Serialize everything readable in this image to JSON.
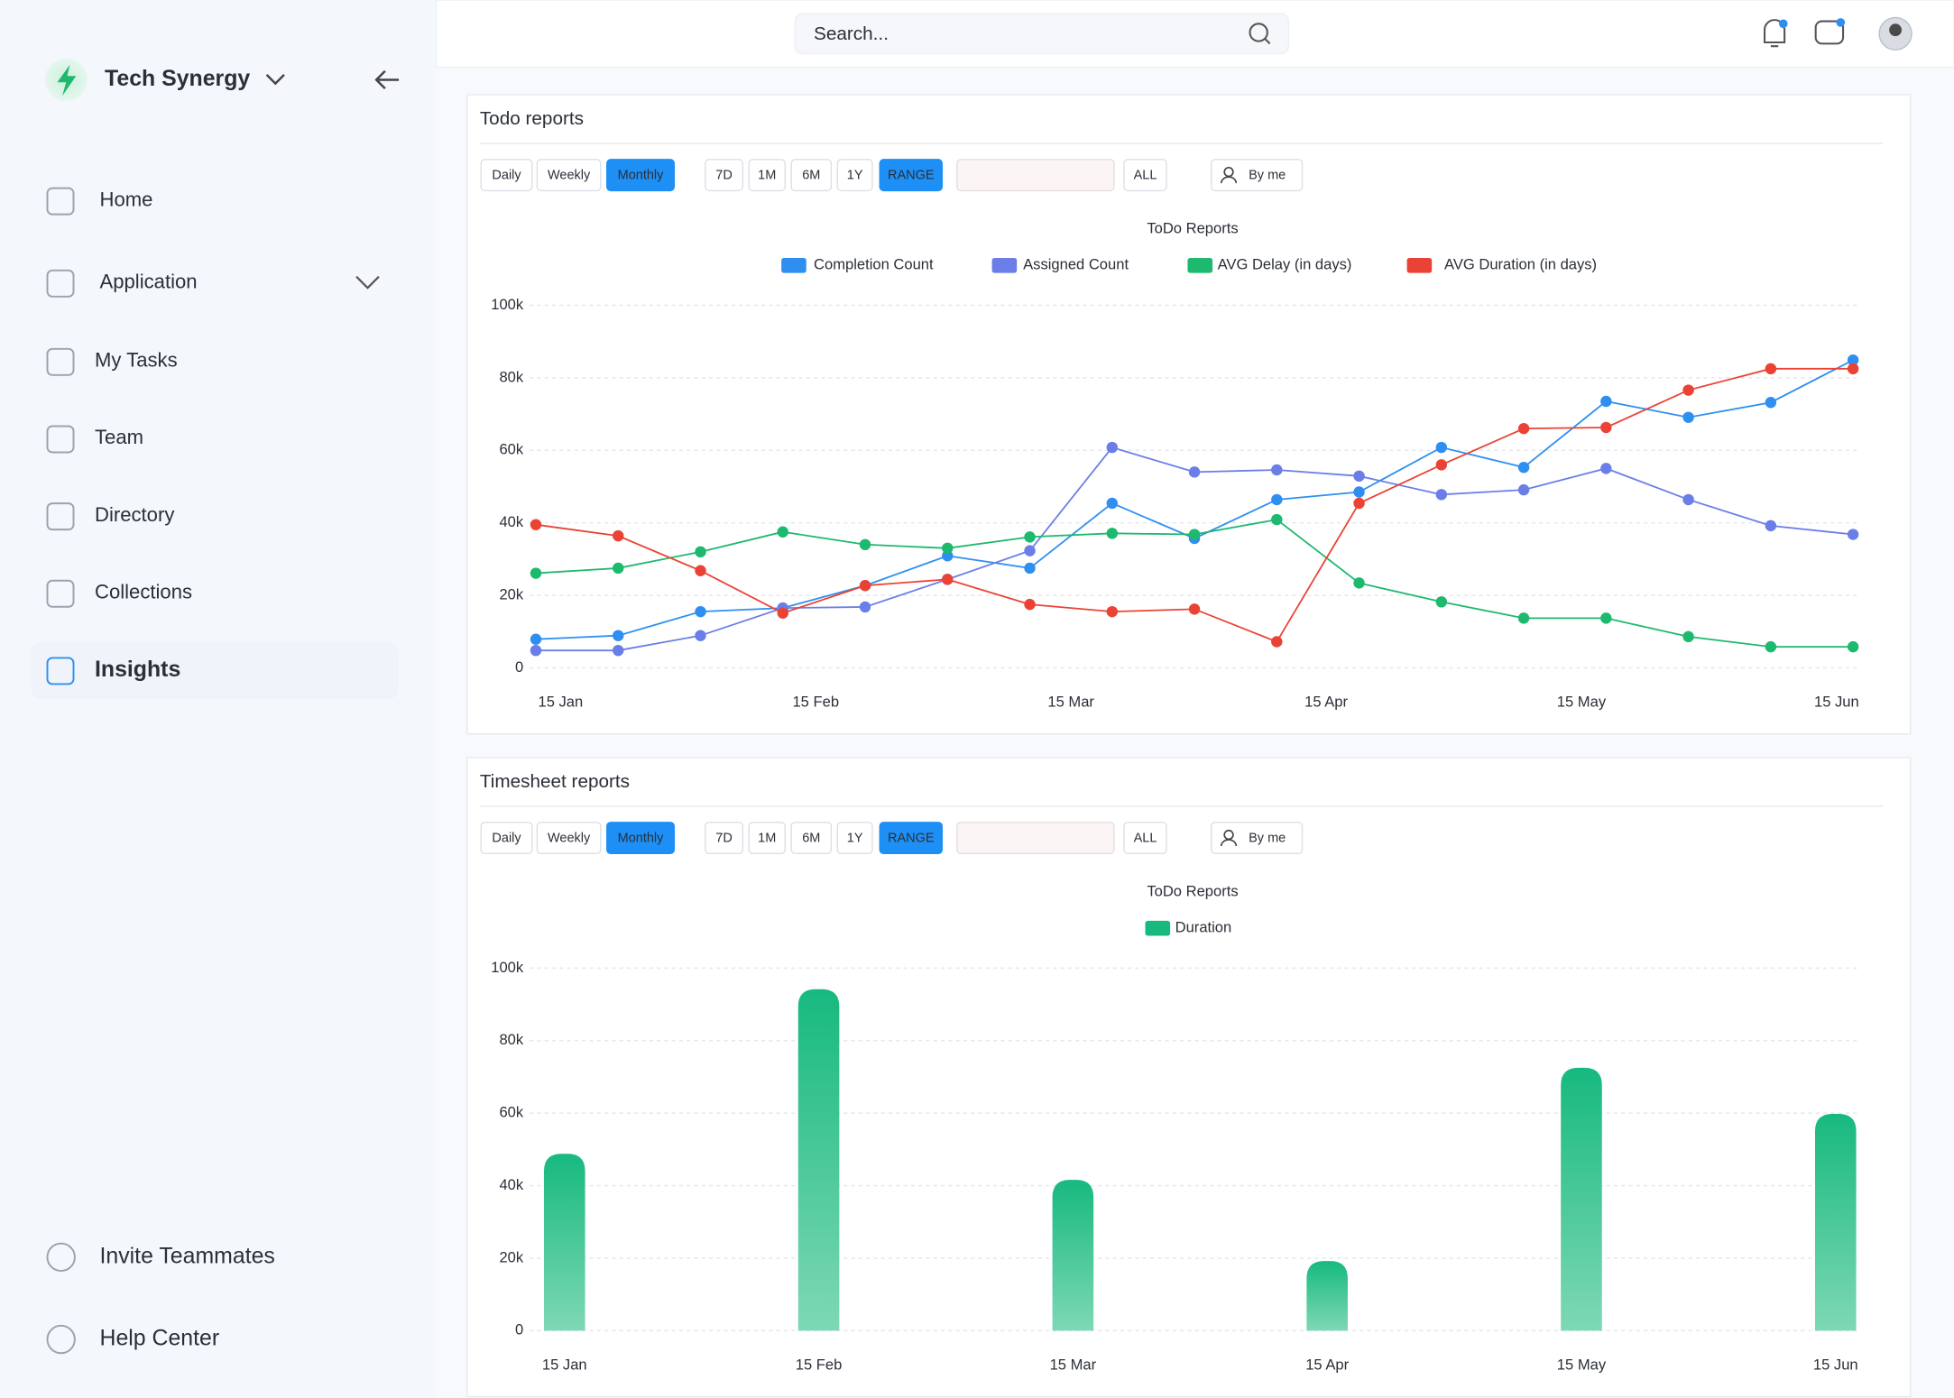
{
  "sidebar": {
    "brand": "Tech Synergy",
    "nav": [
      "Home",
      "Application",
      "My Tasks",
      "Team",
      "Directory",
      "Collections",
      "Insights"
    ],
    "footer": [
      "Invite Teammates",
      "Help Center"
    ]
  },
  "header": {
    "search_placeholder": "Search..."
  },
  "panels": [
    {
      "title": "Todo reports",
      "buttons": [
        "Daily",
        "Weekly",
        "Monthly",
        "7D",
        "1M",
        "6M",
        "1Y",
        "RANGE",
        "ALL"
      ],
      "filter": "By me"
    },
    {
      "title": "Timesheet reports",
      "buttons": [
        "Daily",
        "Weekly",
        "Monthly",
        "7D",
        "1M",
        "6M",
        "1Y",
        "RANGE",
        "ALL"
      ],
      "filter": "By me"
    }
  ],
  "chart_data": [
    {
      "type": "line",
      "title": "ToDo Reports",
      "x": [
        0,
        1,
        2,
        3,
        4,
        5,
        6,
        7,
        8,
        9,
        10,
        11,
        12,
        13,
        14,
        15,
        16
      ],
      "xlim": [
        0,
        16
      ],
      "xticks": [
        {
          "value": 0.3,
          "label": "15 Jan"
        },
        {
          "value": 3.4,
          "label": "15 Feb"
        },
        {
          "value": 6.5,
          "label": "15 Mar"
        },
        {
          "value": 9.6,
          "label": "15 Apr"
        },
        {
          "value": 12.7,
          "label": "15 May"
        },
        {
          "value": 15.8,
          "label": "15 Jun"
        }
      ],
      "ylim": [
        0,
        100000
      ],
      "yticks": [
        0,
        {
          "value": 20000,
          "label": "20k"
        },
        {
          "value": 40000,
          "label": "40k"
        },
        {
          "value": 60000,
          "label": "60k"
        },
        {
          "value": 80000,
          "label": "80k"
        },
        {
          "value": 100000,
          "label": "100k"
        }
      ],
      "grid": true,
      "series": [
        {
          "name": "Completion Count",
          "color": "#2f8ff0",
          "values": [
            7900,
            8900,
            15500,
            16500,
            22700,
            30900,
            27500,
            45400,
            35700,
            46400,
            48500,
            60800,
            55300,
            73500,
            69100,
            73200,
            84900
          ]
        },
        {
          "name": "Assigned Count",
          "color": "#6b7ee8",
          "values": [
            4800,
            4800,
            8900,
            16500,
            16800,
            24400,
            32300,
            60800,
            54000,
            54600,
            52900,
            47800,
            49100,
            55000,
            46400,
            39200,
            36800
          ]
        },
        {
          "name": "AVG Delay (in days)",
          "color": "#1db96f",
          "values": [
            26100,
            27500,
            32000,
            37500,
            34000,
            33000,
            36100,
            37100,
            36800,
            40900,
            23400,
            18200,
            13700,
            13700,
            8600,
            5800,
            5800
          ]
        },
        {
          "name": "AVG Duration (in days)",
          "color": "#ea4335",
          "values": [
            39500,
            36400,
            26800,
            15100,
            22700,
            24400,
            17500,
            15500,
            16200,
            7200,
            45400,
            56000,
            66000,
            66300,
            76600,
            82500,
            82500
          ]
        }
      ]
    },
    {
      "type": "bar",
      "title": "ToDo Reports",
      "categories": [
        "15 Jan",
        "15 Feb",
        "15 Mar",
        "15 Apr",
        "15 May",
        "15 Jun"
      ],
      "ylim": [
        0,
        100000
      ],
      "yticks": [
        0,
        {
          "value": 20000,
          "label": "20k"
        },
        {
          "value": 40000,
          "label": "40k"
        },
        {
          "value": 60000,
          "label": "60k"
        },
        {
          "value": 80000,
          "label": "80k"
        },
        {
          "value": 100000,
          "label": "100k"
        }
      ],
      "grid": true,
      "series": [
        {
          "name": "Duration",
          "color": "#17b97f",
          "values": [
            48800,
            94200,
            41600,
            19200,
            72500,
            59800
          ]
        }
      ]
    }
  ]
}
